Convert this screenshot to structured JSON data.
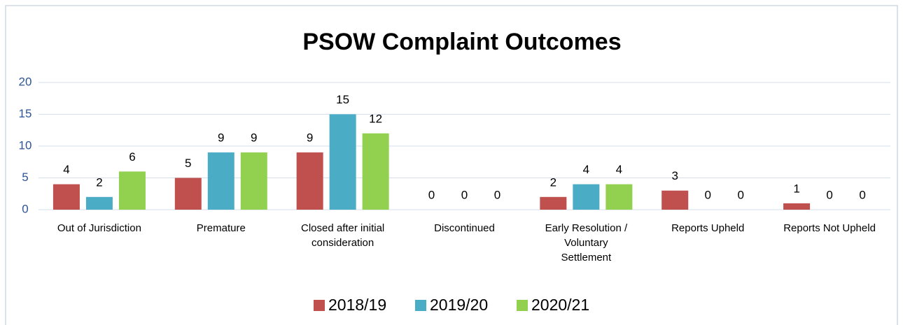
{
  "chart_data": {
    "type": "bar",
    "title": "PSOW Complaint Outcomes",
    "categories": [
      "Out of Jurisdiction",
      "Premature",
      "Closed after initial consideration",
      "Discontinued",
      "Early Resolution / Voluntary Settlement",
      "Reports Upheld",
      "Reports Not Upheld"
    ],
    "series": [
      {
        "name": "2018/19",
        "color": "#c0504d",
        "values": [
          4,
          5,
          9,
          0,
          2,
          3,
          1
        ]
      },
      {
        "name": "2019/20",
        "color": "#4bacc6",
        "values": [
          2,
          9,
          15,
          0,
          4,
          0,
          0
        ]
      },
      {
        "name": "2020/21",
        "color": "#92d050",
        "values": [
          6,
          9,
          12,
          0,
          4,
          0,
          0
        ]
      }
    ],
    "ylim": [
      0,
      20
    ],
    "yticks": [
      0,
      5,
      10,
      15,
      20
    ],
    "grid": true,
    "legend": "bottom"
  }
}
